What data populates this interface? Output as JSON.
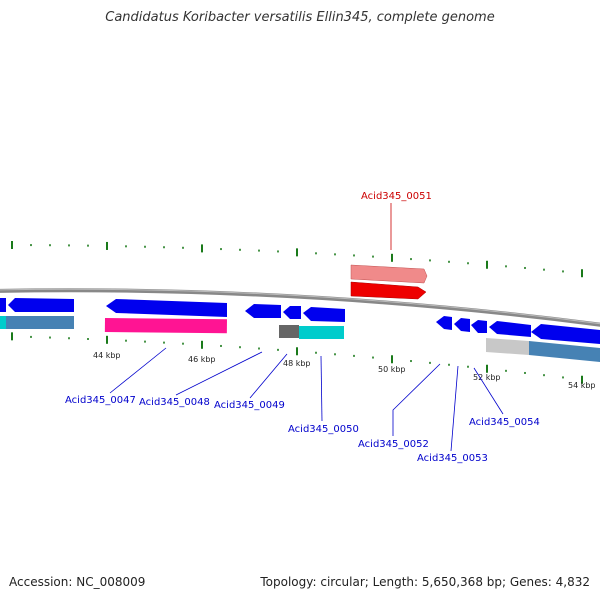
{
  "title": "Candidatus Koribacter versatilis Ellin345, complete genome",
  "footer": {
    "accession": "Accession: NC_008009",
    "topology": "Topology: circular; Length: 5,650,368 bp; Genes: 4,832"
  },
  "colors": {
    "backbone": "#888888",
    "tick": "#1a7a1a",
    "forward_gene": "#0000ee",
    "label_link": "#0000cc",
    "highlight_gene": "#ee0000",
    "highlight_label": "#cc0000"
  },
  "scale_labels": [
    "44 kbp",
    "46 kbp",
    "48 kbp",
    "50 kbp",
    "52 kbp",
    "54 kbp"
  ],
  "gene_labels": [
    {
      "name": "Acid345_0047",
      "color": "#0000cc"
    },
    {
      "name": "Acid345_0048",
      "color": "#0000cc"
    },
    {
      "name": "Acid345_0049",
      "color": "#0000cc"
    },
    {
      "name": "Acid345_0050",
      "color": "#0000cc"
    },
    {
      "name": "Acid345_0051",
      "color": "#cc0000"
    },
    {
      "name": "Acid345_0052",
      "color": "#0000cc"
    },
    {
      "name": "Acid345_0053",
      "color": "#0000cc"
    },
    {
      "name": "Acid345_0054",
      "color": "#0000cc"
    }
  ]
}
